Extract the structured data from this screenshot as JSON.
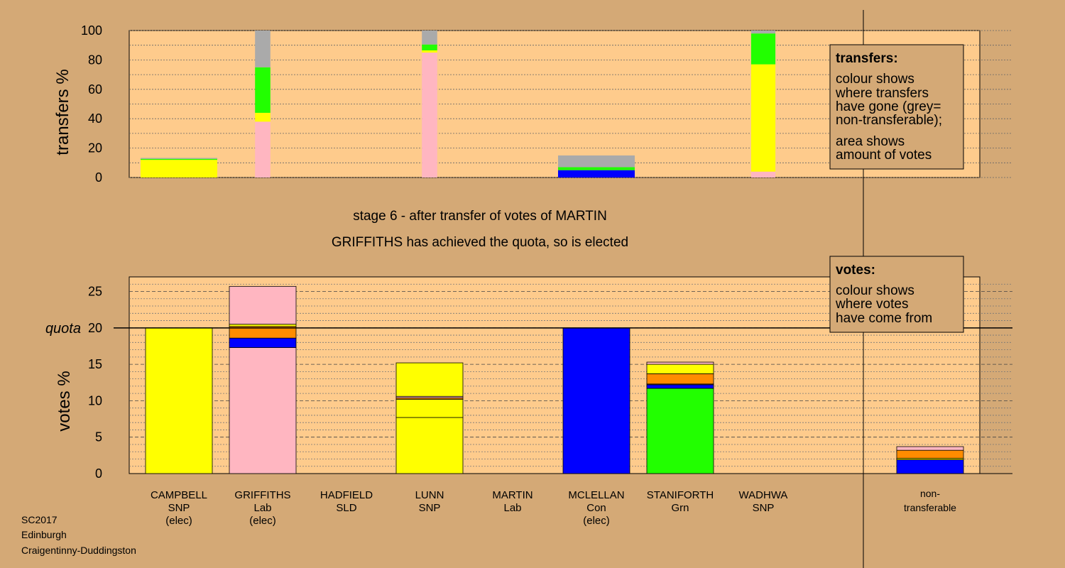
{
  "stage_text": "stage 6 - after transfer of votes of MARTIN",
  "elected_text": "GRIFFITHS has achieved the quota, so is elected",
  "footer": [
    "SC2017",
    "Edinburgh",
    "Craigentinny-Duddingston"
  ],
  "colors": {
    "background": "#D4A976",
    "plot": "#FECB8C",
    "SNP": "#FFFF00",
    "Lab": "#FFB6C1",
    "Con": "#0000FF",
    "Grn": "#22FF00",
    "SLD": "#FF8C00",
    "nontransferable": "#AAAAAA"
  },
  "transfers_legend": {
    "title": "transfers:",
    "lines1": [
      "colour shows",
      "where transfers",
      "have gone (grey=",
      "non-transferable);"
    ],
    "lines2": [
      "area shows",
      "amount of votes"
    ]
  },
  "votes_legend": {
    "title": "votes:",
    "lines": [
      "colour shows",
      "where votes",
      "have come from"
    ]
  },
  "chart_data": [
    {
      "type": "bar",
      "name": "transfers",
      "ylabel": "transfers %",
      "ylim": [
        0,
        100
      ],
      "yticks": [
        0,
        20,
        40,
        60,
        80,
        100
      ],
      "categories": [
        "CAMPBELL",
        "GRIFFITHS",
        "HADFIELD",
        "LUNN",
        "MARTIN",
        "MCLELLAN",
        "STANIFORTH",
        "WADHWA",
        "non-transferable"
      ],
      "widths": [
        0.6,
        0.12,
        0,
        0.12,
        0,
        0.6,
        0,
        0.19,
        0
      ],
      "stacks": [
        [
          {
            "party": "SNP",
            "value": 12
          },
          {
            "party": "Grn",
            "value": 0.7
          },
          {
            "party": "nontransferable",
            "value": 0.6
          }
        ],
        [
          {
            "party": "Lab",
            "value": 38
          },
          {
            "party": "SNP",
            "value": 6
          },
          {
            "party": "Grn",
            "value": 31
          },
          {
            "party": "nontransferable",
            "value": 25
          }
        ],
        [],
        [
          {
            "party": "Lab",
            "value": 85
          },
          {
            "party": "SNP",
            "value": 1.5
          },
          {
            "party": "Grn",
            "value": 4
          },
          {
            "party": "nontransferable",
            "value": 9.5
          }
        ],
        [],
        [
          {
            "party": "Con",
            "value": 5
          },
          {
            "party": "Grn",
            "value": 2
          },
          {
            "party": "nontransferable",
            "value": 8
          }
        ],
        [],
        [
          {
            "party": "Lab",
            "value": 4
          },
          {
            "party": "SNP",
            "value": 73
          },
          {
            "party": "Grn",
            "value": 21
          },
          {
            "party": "nontransferable",
            "value": 2
          }
        ],
        []
      ]
    },
    {
      "type": "bar",
      "name": "votes",
      "ylabel": "votes %",
      "ylim": [
        0,
        27
      ],
      "yticks": [
        0,
        5,
        10,
        15,
        20,
        25
      ],
      "quota": 20,
      "quota_label": "quota",
      "categories": [
        {
          "name": "CAMPBELL",
          "party": "SNP",
          "elected": "(elec)"
        },
        {
          "name": "GRIFFITHS",
          "party": "Lab",
          "elected": "(elec)"
        },
        {
          "name": "HADFIELD",
          "party": "SLD",
          "elected": ""
        },
        {
          "name": "LUNN",
          "party": "SNP",
          "elected": ""
        },
        {
          "name": "MARTIN",
          "party": "Lab",
          "elected": ""
        },
        {
          "name": "MCLELLAN",
          "party": "Con",
          "elected": "(elec)"
        },
        {
          "name": "STANIFORTH",
          "party": "Grn",
          "elected": ""
        },
        {
          "name": "WADHWA",
          "party": "SNP",
          "elected": ""
        },
        {
          "name": "non-\ntransferable",
          "party": "",
          "elected": ""
        }
      ],
      "stacks": [
        [
          {
            "party": "SNP",
            "value": 20
          }
        ],
        [
          {
            "party": "Lab",
            "value": 17.3
          },
          {
            "party": "Con",
            "value": 1.3
          },
          {
            "party": "SLD",
            "value": 1.6
          },
          {
            "party": "SNP",
            "value": 0.3
          },
          {
            "party": "Lab",
            "value": 5.2
          }
        ],
        [],
        [
          {
            "party": "SNP",
            "value": 7.7
          },
          {
            "party": "SNP",
            "value": 2.5
          },
          {
            "party": "SLD",
            "value": 0.2
          },
          {
            "party": "Lab",
            "value": 0.2
          },
          {
            "party": "SNP",
            "value": 4.6
          }
        ],
        [],
        [
          {
            "party": "Con",
            "value": 20
          }
        ],
        [
          {
            "party": "Grn",
            "value": 11.7
          },
          {
            "party": "Con",
            "value": 0.5
          },
          {
            "party": "Lab",
            "value": 0.1
          },
          {
            "party": "SLD",
            "value": 1.4
          },
          {
            "party": "SNP",
            "value": 1.3
          },
          {
            "party": "Lab",
            "value": 0.3
          }
        ],
        [],
        [
          {
            "party": "Con",
            "value": 1.9
          },
          {
            "party": "SNP",
            "value": 0.2
          },
          {
            "party": "SLD",
            "value": 1.1
          },
          {
            "party": "Lab",
            "value": 0.5
          }
        ]
      ]
    }
  ]
}
